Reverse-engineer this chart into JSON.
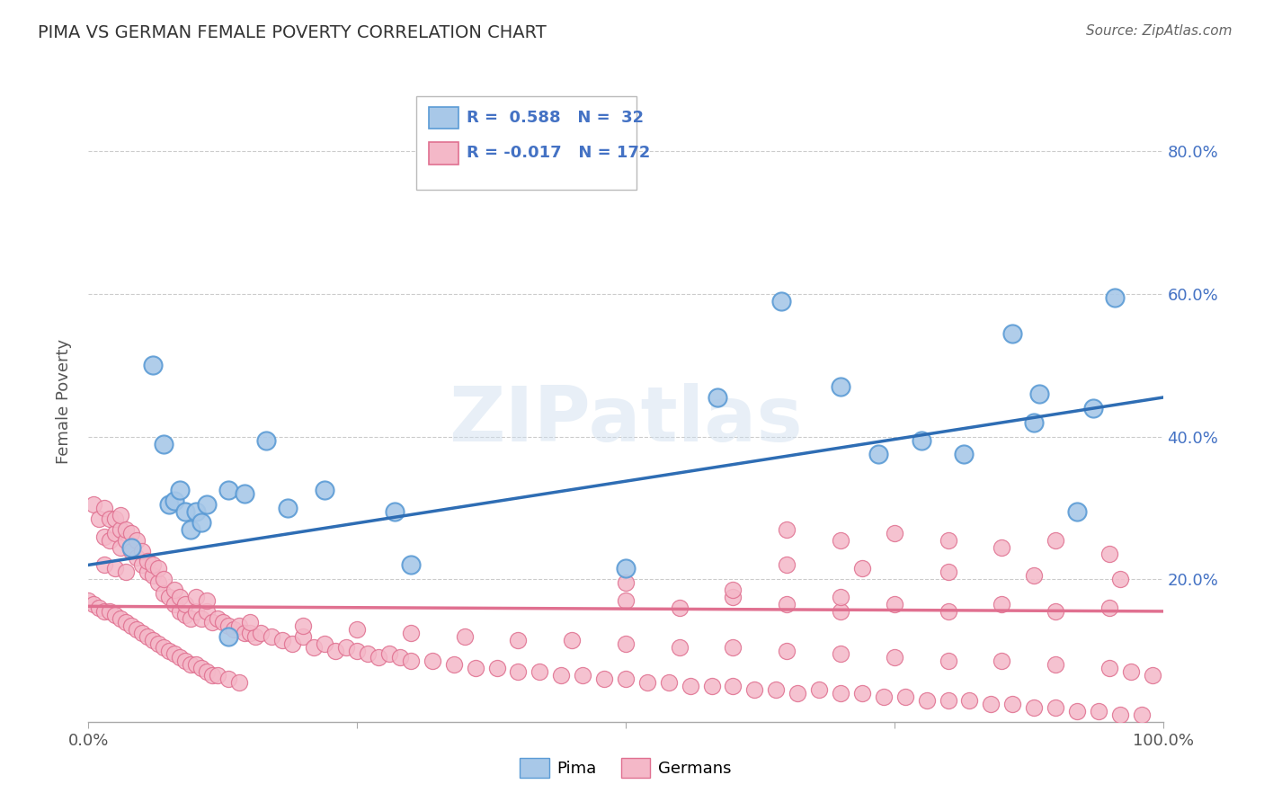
{
  "title": "PIMA VS GERMAN FEMALE POVERTY CORRELATION CHART",
  "source": "Source: ZipAtlas.com",
  "ylabel": "Female Poverty",
  "watermark": "ZIPatlas",
  "pima_R": 0.588,
  "pima_N": 32,
  "german_R": -0.017,
  "german_N": 172,
  "xlim": [
    0.0,
    1.0
  ],
  "ylim": [
    0.0,
    0.9
  ],
  "y_ticks": [
    0.2,
    0.4,
    0.6,
    0.8
  ],
  "y_tick_labels": [
    "20.0%",
    "40.0%",
    "60.0%",
    "80.0%"
  ],
  "grid_color": "#cccccc",
  "background_color": "#ffffff",
  "pima_color": "#a8c8e8",
  "pima_edge_color": "#5b9bd5",
  "german_color": "#f4b8c8",
  "german_edge_color": "#e07090",
  "blue_line_color": "#2e6db4",
  "pink_line_color": "#e07090",
  "legend_color": "#4472c4",
  "pima_line_x": [
    0.0,
    1.0
  ],
  "pima_line_y": [
    0.22,
    0.455
  ],
  "german_line_x": [
    0.0,
    1.0
  ],
  "german_line_y": [
    0.162,
    0.155
  ],
  "pima_x": [
    0.04,
    0.06,
    0.07,
    0.075,
    0.08,
    0.085,
    0.09,
    0.095,
    0.1,
    0.105,
    0.11,
    0.13,
    0.145,
    0.165,
    0.185,
    0.22,
    0.285,
    0.3,
    0.5,
    0.585,
    0.645,
    0.7,
    0.735,
    0.775,
    0.815,
    0.86,
    0.885,
    0.92,
    0.935,
    0.955,
    0.88,
    0.13
  ],
  "pima_y": [
    0.245,
    0.5,
    0.39,
    0.305,
    0.31,
    0.325,
    0.295,
    0.27,
    0.295,
    0.28,
    0.305,
    0.325,
    0.32,
    0.395,
    0.3,
    0.325,
    0.295,
    0.22,
    0.215,
    0.455,
    0.59,
    0.47,
    0.375,
    0.395,
    0.375,
    0.545,
    0.46,
    0.295,
    0.44,
    0.595,
    0.42,
    0.12
  ],
  "german_dense_x": [
    0.005,
    0.01,
    0.015,
    0.015,
    0.02,
    0.02,
    0.025,
    0.025,
    0.03,
    0.03,
    0.03,
    0.035,
    0.035,
    0.04,
    0.04,
    0.045,
    0.045,
    0.05,
    0.05,
    0.055,
    0.055,
    0.06,
    0.06,
    0.065,
    0.065,
    0.07,
    0.07,
    0.075,
    0.08,
    0.08,
    0.085,
    0.085,
    0.09,
    0.09,
    0.095,
    0.1,
    0.1,
    0.105,
    0.11,
    0.11,
    0.115,
    0.12,
    0.125,
    0.13,
    0.135,
    0.14,
    0.145,
    0.15,
    0.155,
    0.16
  ],
  "german_dense_y": [
    0.305,
    0.285,
    0.26,
    0.3,
    0.255,
    0.285,
    0.265,
    0.285,
    0.245,
    0.27,
    0.29,
    0.255,
    0.27,
    0.24,
    0.265,
    0.23,
    0.255,
    0.22,
    0.24,
    0.21,
    0.225,
    0.205,
    0.22,
    0.195,
    0.215,
    0.18,
    0.2,
    0.175,
    0.165,
    0.185,
    0.155,
    0.175,
    0.15,
    0.165,
    0.145,
    0.155,
    0.175,
    0.145,
    0.155,
    0.17,
    0.14,
    0.145,
    0.14,
    0.135,
    0.13,
    0.135,
    0.125,
    0.125,
    0.12,
    0.125
  ],
  "german_low_x": [
    0.0,
    0.005,
    0.01,
    0.015,
    0.02,
    0.025,
    0.03,
    0.035,
    0.04,
    0.045,
    0.05,
    0.055,
    0.06,
    0.065,
    0.07,
    0.075,
    0.08,
    0.085,
    0.09,
    0.095,
    0.1,
    0.105,
    0.11,
    0.115,
    0.12,
    0.13,
    0.14,
    0.015,
    0.025,
    0.035
  ],
  "german_low_y": [
    0.17,
    0.165,
    0.16,
    0.155,
    0.155,
    0.15,
    0.145,
    0.14,
    0.135,
    0.13,
    0.125,
    0.12,
    0.115,
    0.11,
    0.105,
    0.1,
    0.095,
    0.09,
    0.085,
    0.08,
    0.08,
    0.075,
    0.07,
    0.065,
    0.065,
    0.06,
    0.055,
    0.22,
    0.215,
    0.21
  ],
  "german_spread_x": [
    0.17,
    0.18,
    0.19,
    0.2,
    0.21,
    0.22,
    0.23,
    0.24,
    0.25,
    0.26,
    0.27,
    0.28,
    0.29,
    0.3,
    0.32,
    0.34,
    0.36,
    0.38,
    0.4,
    0.42,
    0.44,
    0.46,
    0.48,
    0.5,
    0.52,
    0.54,
    0.56,
    0.58,
    0.6,
    0.62,
    0.64,
    0.66,
    0.68,
    0.7,
    0.72,
    0.74,
    0.76,
    0.78,
    0.8,
    0.82,
    0.84,
    0.86,
    0.88,
    0.9,
    0.92,
    0.94,
    0.96,
    0.98,
    0.5,
    0.55,
    0.6,
    0.65,
    0.7,
    0.75,
    0.8,
    0.85,
    0.9,
    0.95,
    0.65,
    0.7,
    0.75,
    0.8,
    0.85,
    0.9,
    0.95,
    0.65,
    0.72,
    0.8,
    0.88,
    0.96,
    0.15,
    0.2,
    0.25,
    0.3,
    0.35,
    0.4,
    0.45,
    0.5,
    0.55,
    0.6,
    0.65,
    0.7,
    0.75,
    0.8,
    0.85,
    0.9,
    0.95,
    0.97,
    0.99,
    0.5,
    0.6,
    0.7
  ],
  "german_spread_y": [
    0.12,
    0.115,
    0.11,
    0.12,
    0.105,
    0.11,
    0.1,
    0.105,
    0.1,
    0.095,
    0.09,
    0.095,
    0.09,
    0.085,
    0.085,
    0.08,
    0.075,
    0.075,
    0.07,
    0.07,
    0.065,
    0.065,
    0.06,
    0.06,
    0.055,
    0.055,
    0.05,
    0.05,
    0.05,
    0.045,
    0.045,
    0.04,
    0.045,
    0.04,
    0.04,
    0.035,
    0.035,
    0.03,
    0.03,
    0.03,
    0.025,
    0.025,
    0.02,
    0.02,
    0.015,
    0.015,
    0.01,
    0.01,
    0.17,
    0.16,
    0.175,
    0.165,
    0.155,
    0.165,
    0.155,
    0.165,
    0.155,
    0.16,
    0.27,
    0.255,
    0.265,
    0.255,
    0.245,
    0.255,
    0.235,
    0.22,
    0.215,
    0.21,
    0.205,
    0.2,
    0.14,
    0.135,
    0.13,
    0.125,
    0.12,
    0.115,
    0.115,
    0.11,
    0.105,
    0.105,
    0.1,
    0.095,
    0.09,
    0.085,
    0.085,
    0.08,
    0.075,
    0.07,
    0.065,
    0.195,
    0.185,
    0.175
  ]
}
